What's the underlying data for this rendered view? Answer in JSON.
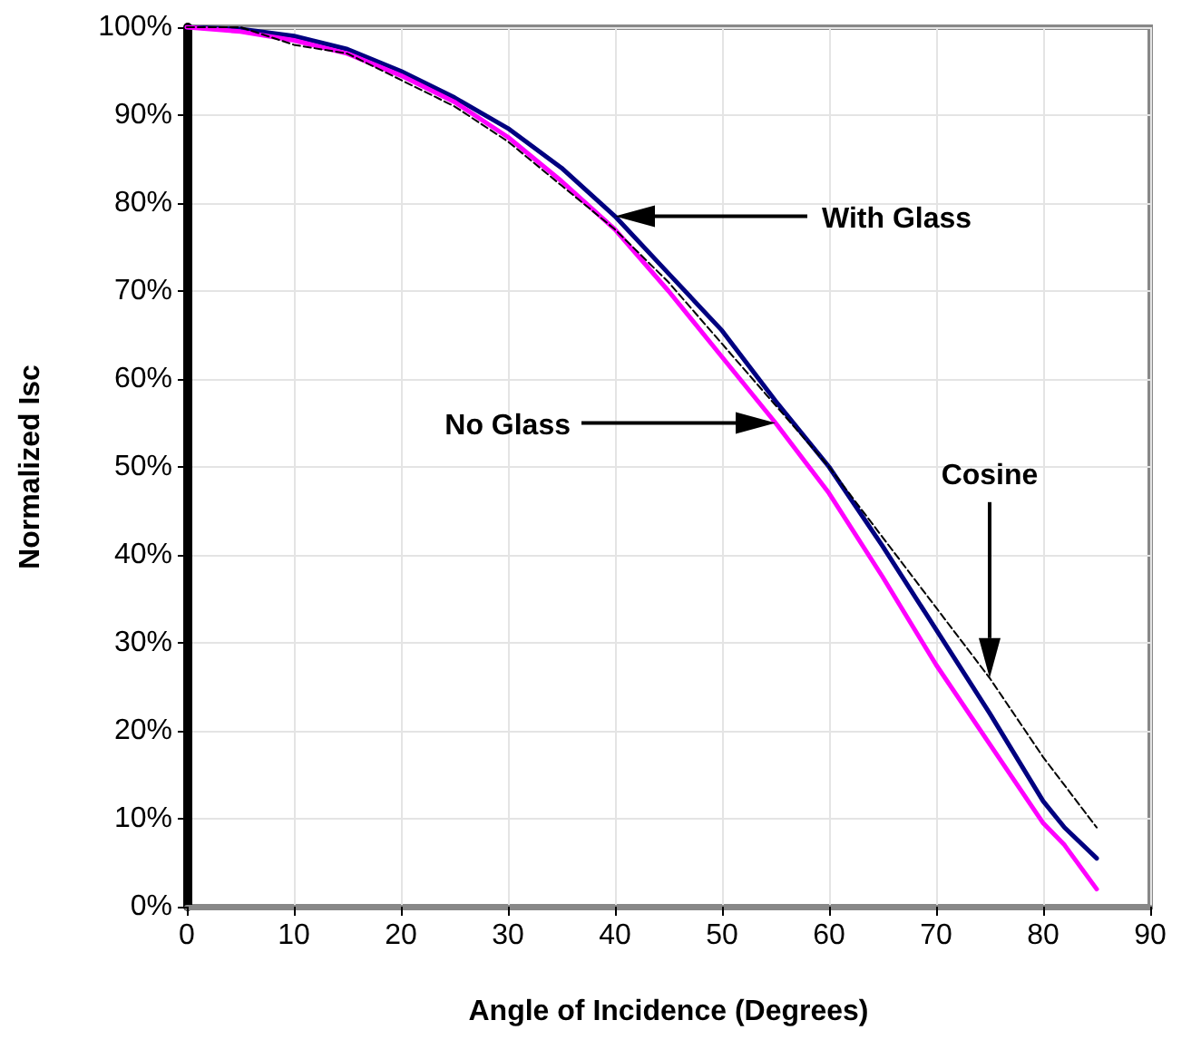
{
  "chart_data": {
    "type": "line",
    "xlabel": "Angle of Incidence (Degrees)",
    "ylabel": "Normalized Isc",
    "x": [
      0,
      5,
      10,
      15,
      20,
      25,
      30,
      35,
      40,
      45,
      50,
      55,
      60,
      65,
      70,
      75,
      80,
      82,
      85
    ],
    "series": [
      {
        "color": "#000080",
        "line_style": "solid",
        "values": [
          100,
          99.8,
          99,
          97.5,
          95,
          92,
          88.5,
          84,
          78.5,
          72,
          65.5,
          57.5,
          50,
          41,
          31.5,
          22,
          12,
          9,
          5.5
        ]
      },
      {
        "color": "#ff00ff",
        "line_style": "solid",
        "values": [
          100,
          99.5,
          98.5,
          97,
          94.5,
          91.5,
          87.5,
          82.5,
          77,
          70,
          62.5,
          55,
          47,
          37.5,
          27.5,
          18.5,
          9.5,
          7,
          2
        ]
      },
      {
        "color": "#000000",
        "line_style": "dashed",
        "x": [
          0,
          5,
          10,
          15,
          20,
          25,
          30,
          35,
          40,
          45,
          50,
          55,
          60,
          65,
          70,
          75,
          80,
          85
        ],
        "values": [
          100,
          100,
          98,
          97,
          94,
          91,
          87,
          82,
          77,
          71,
          64,
          57,
          50,
          42,
          34,
          26,
          17,
          9
        ]
      }
    ],
    "xlim": [
      0,
      90
    ],
    "xticks": [
      0,
      10,
      20,
      30,
      40,
      50,
      60,
      70,
      80,
      90
    ],
    "ylim": [
      0,
      100
    ],
    "yticks": [
      {
        "value": 0,
        "label": "0%"
      },
      {
        "value": 10,
        "label": "10%"
      },
      {
        "value": 20,
        "label": "20%"
      },
      {
        "value": 30,
        "label": "30%"
      },
      {
        "value": 40,
        "label": "40%"
      },
      {
        "value": 50,
        "label": "50%"
      },
      {
        "value": 60,
        "label": "60%"
      },
      {
        "value": 70,
        "label": "70%"
      },
      {
        "value": 80,
        "label": "80%"
      },
      {
        "value": 90,
        "label": "90%"
      },
      {
        "value": 100,
        "label": "100%"
      }
    ],
    "annotations": [
      "With Glass",
      "No Glass",
      "Cosine"
    ],
    "grid": true,
    "marker": "none"
  }
}
